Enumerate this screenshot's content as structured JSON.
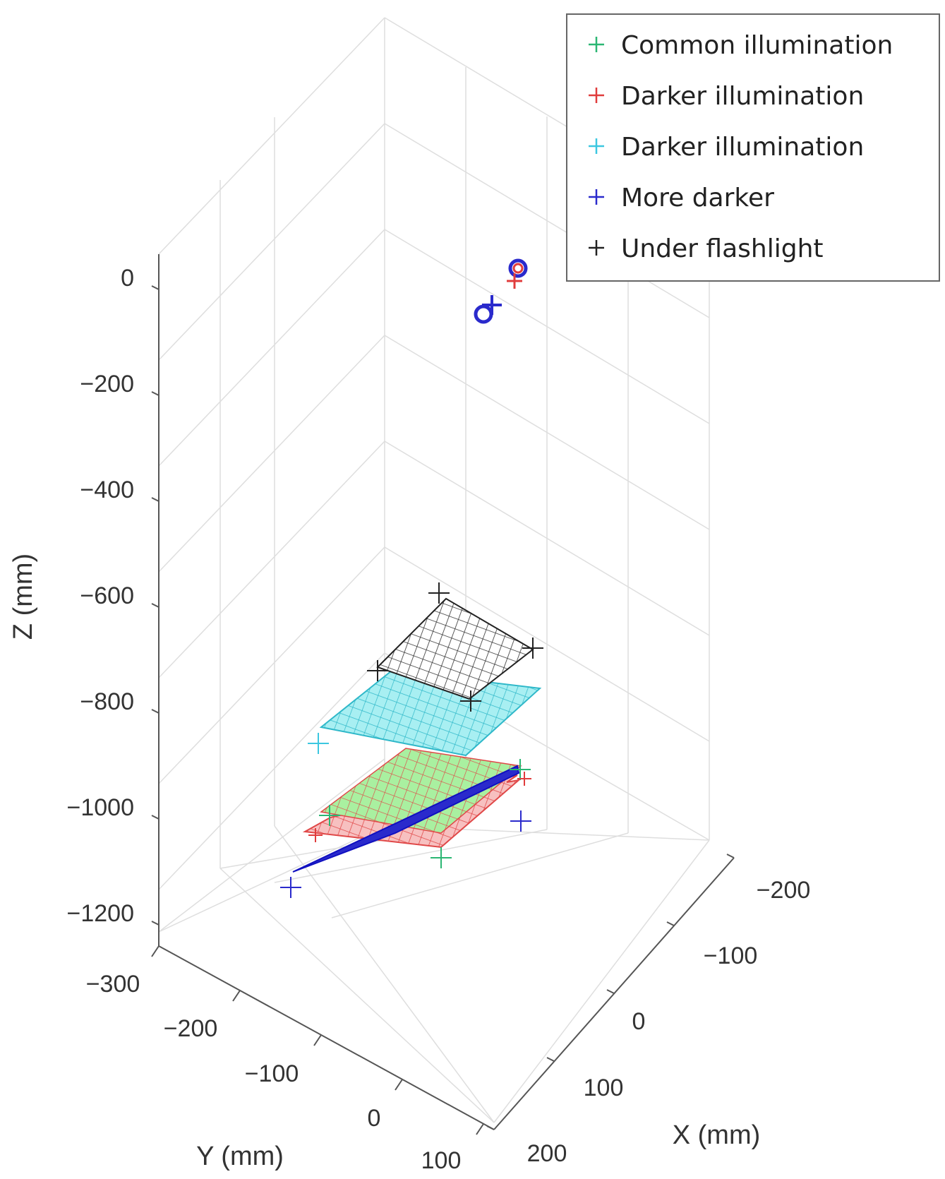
{
  "chart_data": {
    "type": "scatter3d",
    "title": "",
    "xlabel": "X (mm)",
    "ylabel": "Y (mm)",
    "zlabel": "Z (mm)",
    "x_ticks": [
      "−200",
      "−100",
      "0",
      "100",
      "200"
    ],
    "y_ticks": [
      "−300",
      "−200",
      "−100",
      "0",
      "100"
    ],
    "z_ticks": [
      "0",
      "−200",
      "−400",
      "−600",
      "−800",
      "−1000",
      "−1200"
    ],
    "xlim": [
      -200,
      200
    ],
    "ylim": [
      -300,
      100
    ],
    "zlim": [
      -1200,
      0
    ],
    "grid": true,
    "legend_position": "top-right",
    "legend": [
      {
        "label": "Common illumination",
        "color": "#2bb673"
      },
      {
        "label": "Darker illumination",
        "color": "#e03c3c"
      },
      {
        "label": "Darker illumination",
        "color": "#3cc7e0"
      },
      {
        "label": "More darker",
        "color": "#2a2acc"
      },
      {
        "label": "Under flashlight",
        "color": "#222222"
      }
    ],
    "origin_markers": [
      {
        "x": 0,
        "y": 0,
        "z": 0,
        "color": "#2a2acc"
      },
      {
        "x": 50,
        "y": -20,
        "z": 0,
        "color": "#e03c3c"
      }
    ],
    "planes": [
      {
        "name": "Under flashlight",
        "color": "#222222",
        "fill": "#ffffff",
        "z": -700
      },
      {
        "name": "Darker illumination (cyan)",
        "color": "#2fb8c9",
        "fill": "#a8eff2",
        "z": -820
      },
      {
        "name": "Common illumination",
        "color": "#e04848",
        "fill": "#a9f0a0",
        "z": -960
      },
      {
        "name": "Darker illumination (red)",
        "color": "#e04848",
        "fill": "#f7c0c0",
        "z": -1020
      },
      {
        "name": "More darker",
        "color": "#1010c0",
        "fill": "#2a2acc",
        "z": -1050
      }
    ]
  }
}
